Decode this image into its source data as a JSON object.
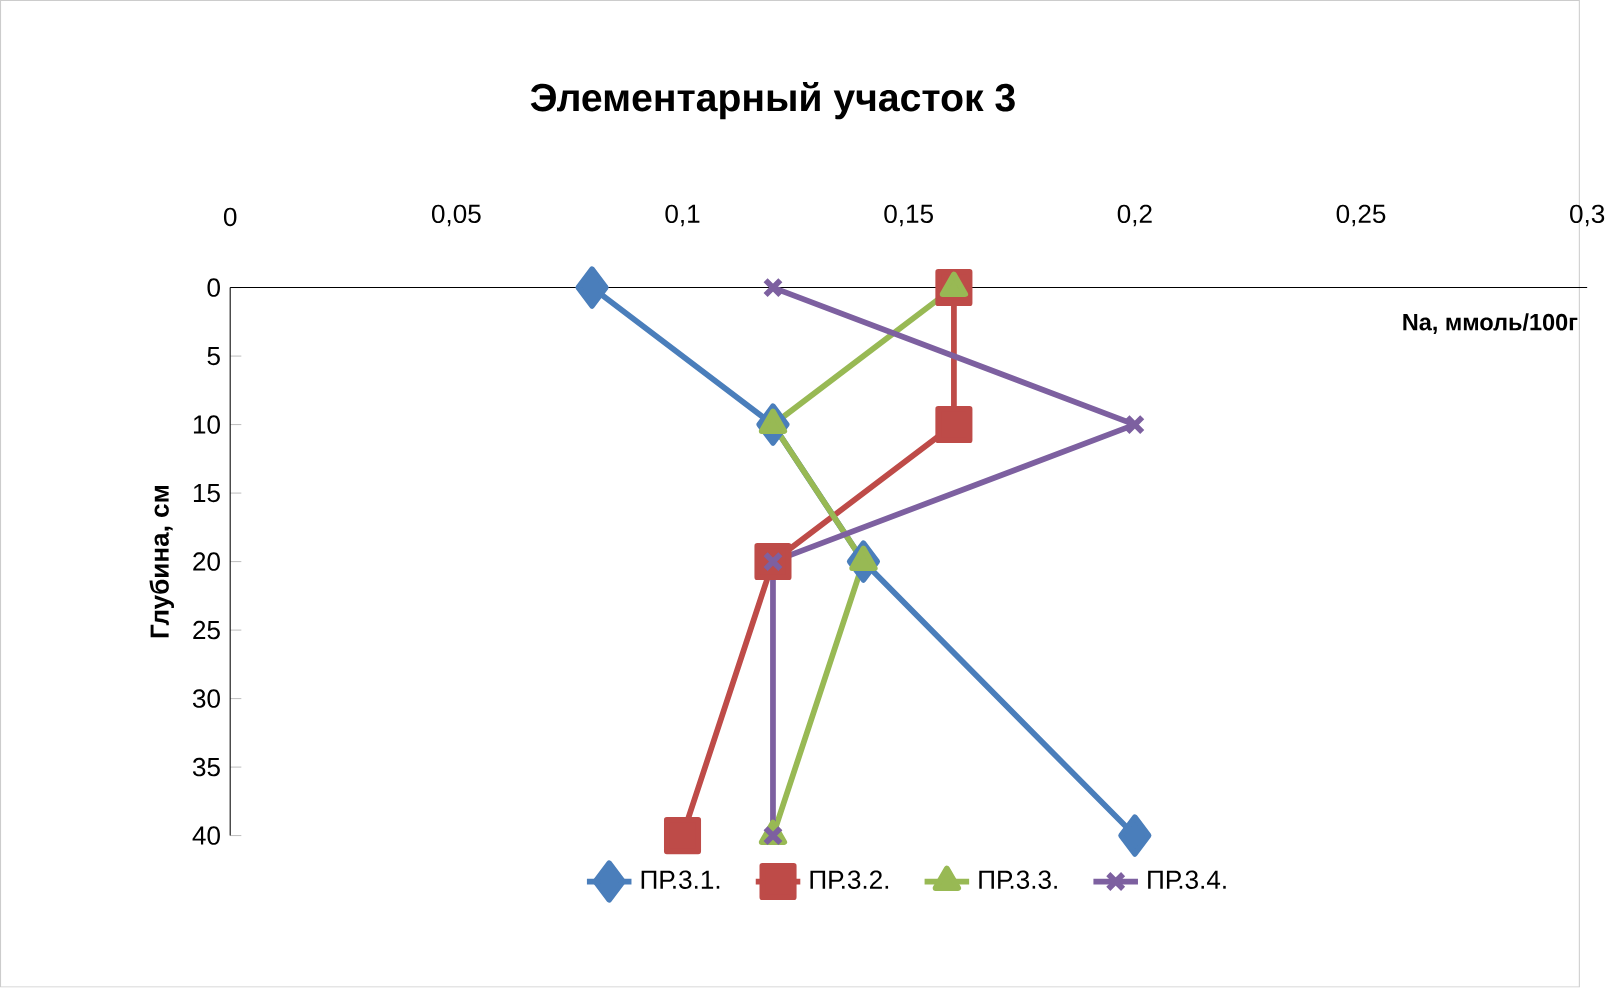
{
  "chart_data": {
    "type": "line",
    "title": "Элементарный участок 3",
    "xlabel": "Na, ммоль/100г",
    "ylabel": "Глубина, см",
    "xlim": [
      0,
      0.3
    ],
    "ylim": [
      40,
      0
    ],
    "xticks": [
      0,
      {
        "value": 0.05,
        "label": "0,05"
      },
      {
        "value": 0.1,
        "label": "0,1"
      },
      {
        "value": 0.15,
        "label": "0,15"
      },
      {
        "value": 0.2,
        "label": "0,2"
      },
      {
        "value": 0.25,
        "label": "0,25"
      },
      {
        "value": 0.3,
        "label": "0,3"
      }
    ],
    "yticks": [
      0,
      5,
      10,
      15,
      20,
      25,
      30,
      35,
      40
    ],
    "legend": "bottom",
    "grid": false,
    "series": [
      {
        "name": "ПР.3.1.",
        "color": "#4a7ebb",
        "marker": "diamond",
        "x": [
          0.08,
          0.12,
          0.14,
          0.2
        ],
        "values": [
          0,
          10,
          20,
          40
        ]
      },
      {
        "name": "ПР.3.2.",
        "color": "#be4b48",
        "marker": "square",
        "x": [
          0.16,
          0.16,
          0.12,
          0.1
        ],
        "values": [
          0,
          10,
          20,
          40
        ]
      },
      {
        "name": "ПР.3.3.",
        "color": "#98b954",
        "marker": "triangle",
        "x": [
          0.16,
          0.12,
          0.14,
          0.12
        ],
        "values": [
          0,
          10,
          20,
          40
        ]
      },
      {
        "name": "ПР.3.4.",
        "color": "#7d60a0",
        "marker": "cross",
        "x": [
          0.12,
          0.2,
          0.12,
          0.12
        ],
        "values": [
          0,
          10,
          20,
          40
        ]
      }
    ]
  }
}
